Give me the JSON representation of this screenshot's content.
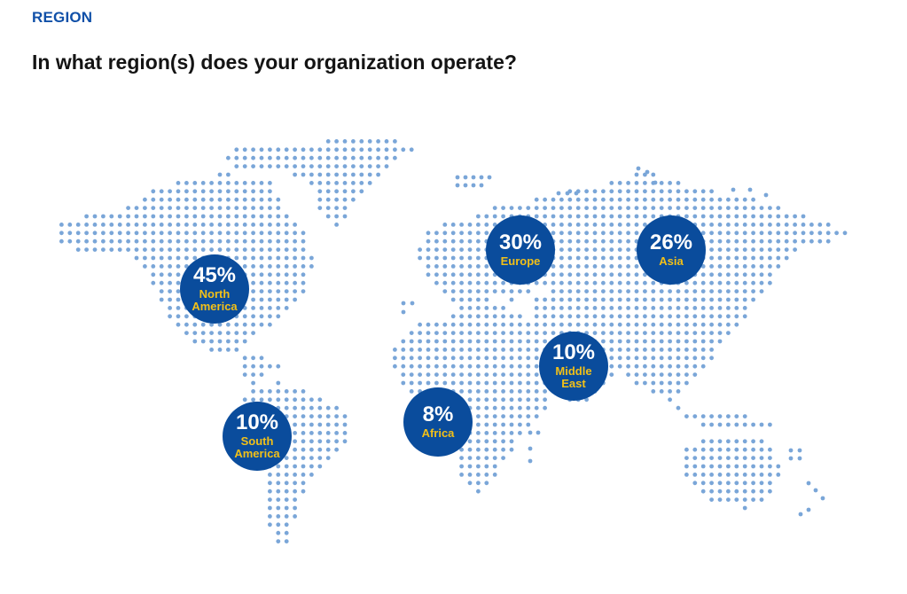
{
  "header": {
    "section": "REGION",
    "question": "In what region(s) does your organization operate?"
  },
  "colors": {
    "accent_blue": "#0a4c9c",
    "label_yellow": "#f2c018",
    "map_dots": "#7aa6d8",
    "section_blue": "#1050a8"
  },
  "chart_data": {
    "type": "bubble-map",
    "title": "In what region(s) does your organization operate?",
    "unit": "%",
    "regions": [
      {
        "name": "North America",
        "value": 45,
        "display": "45%",
        "label": "North\nAmerica"
      },
      {
        "name": "Europe",
        "value": 30,
        "display": "30%",
        "label": "Europe"
      },
      {
        "name": "Asia",
        "value": 26,
        "display": "26%",
        "label": "Asia"
      },
      {
        "name": "Middle East",
        "value": 10,
        "display": "10%",
        "label": "Middle\nEast"
      },
      {
        "name": "South America",
        "value": 10,
        "display": "10%",
        "label": "South\nAmerica"
      },
      {
        "name": "Africa",
        "value": 8,
        "display": "8%",
        "label": "Africa"
      }
    ]
  }
}
